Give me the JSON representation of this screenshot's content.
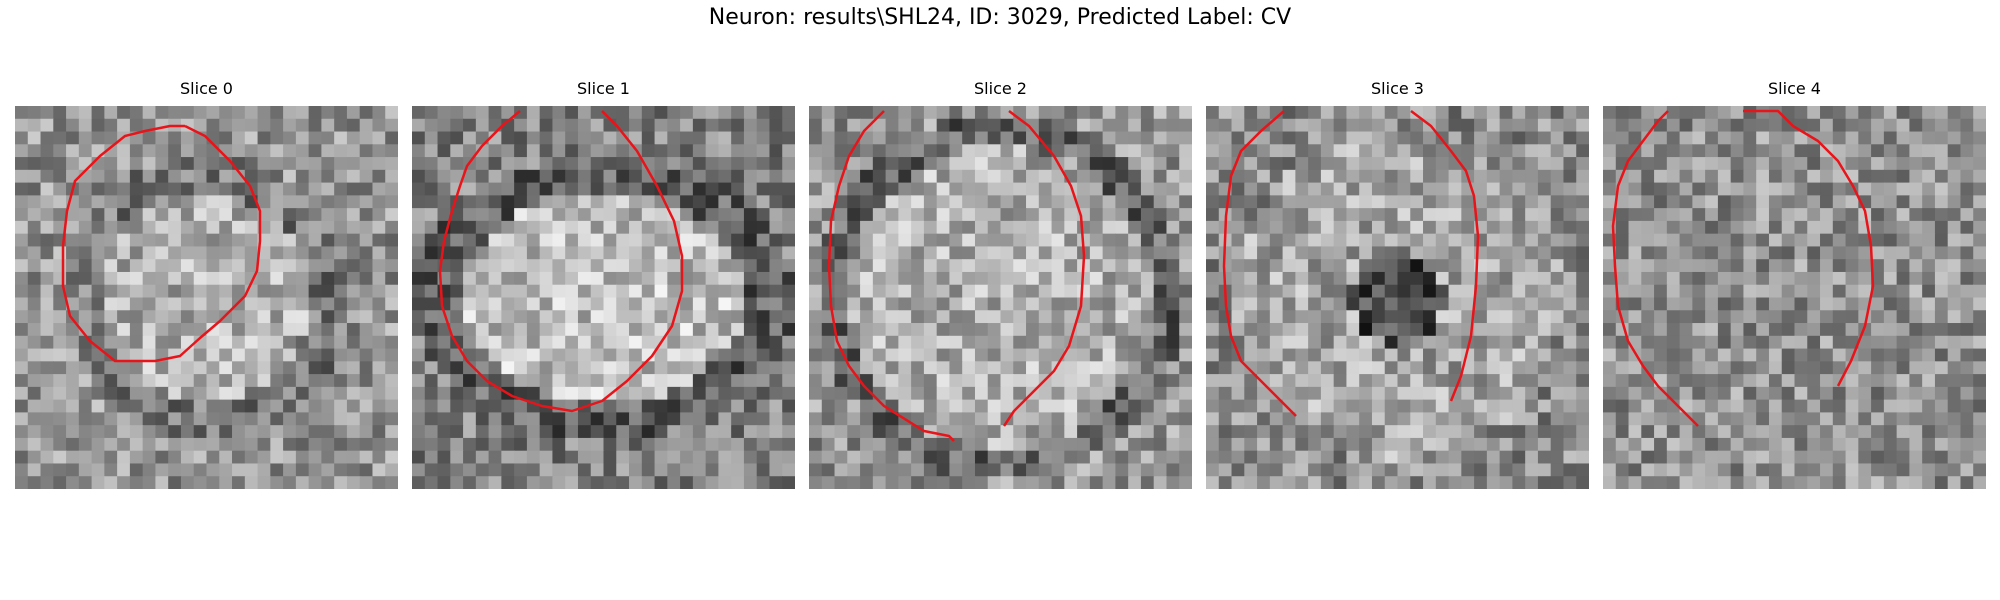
{
  "figure": {
    "title": "Neuron: results\\SHL24, ID: 3029, Predicted Label: CV"
  },
  "colors": {
    "contour": "#e8141a",
    "background": "#ffffff"
  },
  "panels": [
    {
      "title": "Slice 0",
      "seed": 11,
      "brightness": "bright-center"
    },
    {
      "title": "Slice 1",
      "seed": 23,
      "brightness": "bright-oval"
    },
    {
      "title": "Slice 2",
      "seed": 37,
      "brightness": "bright-large"
    },
    {
      "title": "Slice 3",
      "seed": 41,
      "brightness": "dark-center"
    },
    {
      "title": "Slice 4",
      "seed": 53,
      "brightness": "flat"
    }
  ]
}
